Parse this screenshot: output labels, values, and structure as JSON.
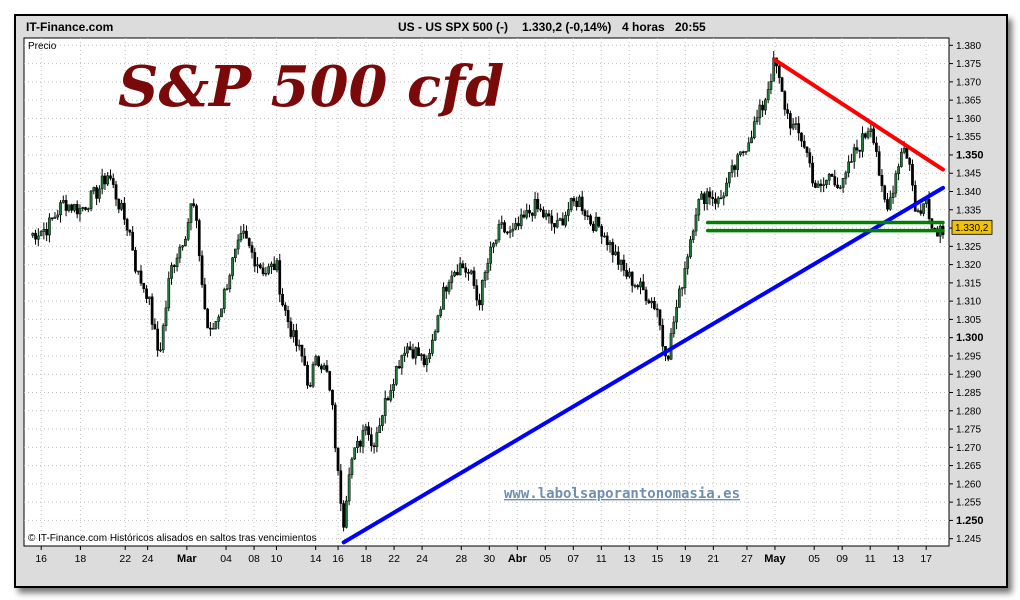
{
  "header": {
    "site": "IT-Finance.com",
    "instrument": "US - US SPX 500 (-)",
    "last_change": "1.330,2 (-0,14%)",
    "timeframe": "4 horas",
    "time": "20:55"
  },
  "chart_data": {
    "type": "candlestick",
    "title": "S&P 500 cfd",
    "ylabel": "Precio",
    "ylim": [
      1243,
      1382
    ],
    "y_ticks": [
      "1.245",
      "1.250",
      "1.255",
      "1.260",
      "1.265",
      "1.270",
      "1.275",
      "1.280",
      "1.285",
      "1.290",
      "1.295",
      "1.300",
      "1.305",
      "1.310",
      "1.315",
      "1.320",
      "1.325",
      "1.330",
      "1.335",
      "1.340",
      "1.345",
      "1.350",
      "1.355",
      "1.360",
      "1.365",
      "1.370",
      "1.375",
      "1.380"
    ],
    "y_ticks_bold": [
      "1.250",
      "1.300",
      "1.350"
    ],
    "y_tick_values": [
      1245,
      1250,
      1255,
      1260,
      1265,
      1270,
      1275,
      1280,
      1285,
      1290,
      1295,
      1300,
      1305,
      1310,
      1315,
      1320,
      1325,
      1330,
      1335,
      1340,
      1345,
      1350,
      1355,
      1360,
      1365,
      1370,
      1375,
      1380
    ],
    "x_labels": [
      "16",
      "18",
      "22",
      "24",
      "Mar",
      "04",
      "08",
      "10",
      "14",
      "16",
      "18",
      "22",
      "24",
      "28",
      "30",
      "Abr",
      "05",
      "07",
      "11",
      "13",
      "15",
      "19",
      "21",
      "27",
      "May",
      "05",
      "09",
      "11",
      "13",
      "17"
    ],
    "x_labels_bold": [
      "Mar",
      "Abr",
      "May"
    ],
    "x_label_index": [
      2,
      9,
      17,
      21,
      28,
      35,
      40,
      44,
      51,
      55,
      60,
      65,
      70,
      77,
      82,
      87,
      92,
      97,
      102,
      107,
      112,
      117,
      122,
      128,
      133,
      140,
      145,
      150,
      155,
      160
    ],
    "x_range": [
      0,
      163
    ],
    "last_value": "1.330,2",
    "close_path": [
      [
        0,
        1328
      ],
      [
        3,
        1330
      ],
      [
        6,
        1337
      ],
      [
        9,
        1335
      ],
      [
        12,
        1340
      ],
      [
        14,
        1345
      ],
      [
        16,
        1336
      ],
      [
        18,
        1328
      ],
      [
        19,
        1318
      ],
      [
        21,
        1312
      ],
      [
        22,
        1303
      ],
      [
        23,
        1295
      ],
      [
        24,
        1305
      ],
      [
        25,
        1318
      ],
      [
        26,
        1322
      ],
      [
        28,
        1330
      ],
      [
        29,
        1338
      ],
      [
        30,
        1327
      ],
      [
        31,
        1310
      ],
      [
        32,
        1300
      ],
      [
        34,
        1308
      ],
      [
        36,
        1320
      ],
      [
        38,
        1328
      ],
      [
        40,
        1322
      ],
      [
        42,
        1318
      ],
      [
        44,
        1320
      ],
      [
        45,
        1310
      ],
      [
        47,
        1300
      ],
      [
        49,
        1293
      ],
      [
        50,
        1285
      ],
      [
        51,
        1296
      ],
      [
        53,
        1290
      ],
      [
        54,
        1280
      ],
      [
        55,
        1262
      ],
      [
        56,
        1250
      ],
      [
        57,
        1265
      ],
      [
        59,
        1272
      ],
      [
        60,
        1278
      ],
      [
        61,
        1270
      ],
      [
        63,
        1280
      ],
      [
        65,
        1290
      ],
      [
        67,
        1298
      ],
      [
        69,
        1296
      ],
      [
        71,
        1292
      ],
      [
        72,
        1300
      ],
      [
        73,
        1308
      ],
      [
        75,
        1318
      ],
      [
        77,
        1320
      ],
      [
        79,
        1316
      ],
      [
        80,
        1309
      ],
      [
        82,
        1322
      ],
      [
        84,
        1330
      ],
      [
        86,
        1328
      ],
      [
        88,
        1332
      ],
      [
        90,
        1336
      ],
      [
        92,
        1333
      ],
      [
        94,
        1330
      ],
      [
        96,
        1335
      ],
      [
        98,
        1338
      ],
      [
        100,
        1332
      ],
      [
        102,
        1330
      ],
      [
        104,
        1324
      ],
      [
        106,
        1318
      ],
      [
        108,
        1315
      ],
      [
        110,
        1312
      ],
      [
        112,
        1308
      ],
      [
        113,
        1298
      ],
      [
        114,
        1296
      ],
      [
        115,
        1305
      ],
      [
        116,
        1312
      ],
      [
        117,
        1320
      ],
      [
        119,
        1336
      ],
      [
        121,
        1340
      ],
      [
        123,
        1337
      ],
      [
        125,
        1344
      ],
      [
        127,
        1350
      ],
      [
        129,
        1357
      ],
      [
        131,
        1364
      ],
      [
        132,
        1370
      ],
      [
        133,
        1376
      ],
      [
        134,
        1368
      ],
      [
        135,
        1362
      ],
      [
        136,
        1358
      ],
      [
        138,
        1354
      ],
      [
        139,
        1349
      ],
      [
        140,
        1342
      ],
      [
        141,
        1340
      ],
      [
        143,
        1345
      ],
      [
        145,
        1341
      ],
      [
        147,
        1350
      ],
      [
        149,
        1355
      ],
      [
        150,
        1359
      ],
      [
        151,
        1353
      ],
      [
        152,
        1340
      ],
      [
        153,
        1334
      ],
      [
        155,
        1348
      ],
      [
        156,
        1353
      ],
      [
        157,
        1348
      ],
      [
        158,
        1336
      ],
      [
        159,
        1333
      ],
      [
        160,
        1340
      ],
      [
        161,
        1330
      ]
    ],
    "trendlines": [
      {
        "color": "#0000ff",
        "from": [
          56,
          1244
        ],
        "to": [
          163,
          1341
        ]
      },
      {
        "color": "#ff0000",
        "from": [
          133,
          1376
        ],
        "to": [
          163,
          1346
        ]
      },
      {
        "color": "#008000",
        "from": [
          121,
          1331.5
        ],
        "to": [
          163,
          1331.5
        ]
      },
      {
        "color": "#008000",
        "from": [
          121,
          1329.3
        ],
        "to": [
          163,
          1329.3
        ]
      }
    ]
  },
  "footer": {
    "credit": "© IT-Finance.com Históricos alisados en saltos tras vencimientos",
    "watermark": "www.labolsaporantonomasia.es"
  }
}
